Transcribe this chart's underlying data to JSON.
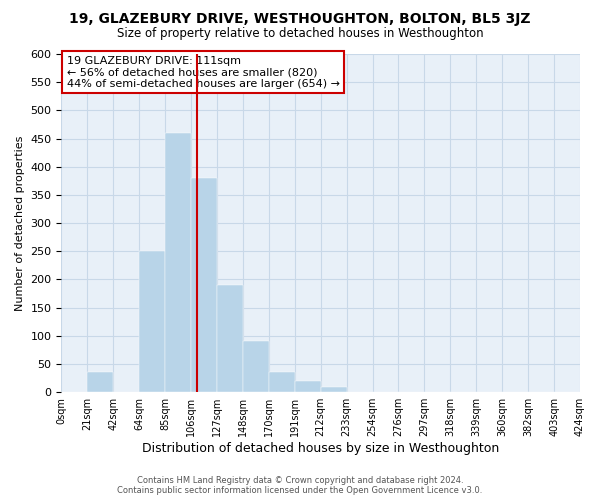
{
  "title": "19, GLAZEBURY DRIVE, WESTHOUGHTON, BOLTON, BL5 3JZ",
  "subtitle": "Size of property relative to detached houses in Westhoughton",
  "xlabel": "Distribution of detached houses by size in Westhoughton",
  "ylabel": "Number of detached properties",
  "bar_color": "#b8d4e8",
  "bar_edge_color": "#b8d4e8",
  "bin_labels": [
    "0sqm",
    "21sqm",
    "42sqm",
    "64sqm",
    "85sqm",
    "106sqm",
    "127sqm",
    "148sqm",
    "170sqm",
    "191sqm",
    "212sqm",
    "233sqm",
    "254sqm",
    "276sqm",
    "297sqm",
    "318sqm",
    "339sqm",
    "360sqm",
    "382sqm",
    "403sqm",
    "424sqm"
  ],
  "bar_heights": [
    0,
    35,
    0,
    250,
    460,
    380,
    190,
    90,
    35,
    20,
    10,
    0,
    0,
    0,
    0,
    0,
    0,
    0,
    0,
    0
  ],
  "n_bins": 20,
  "ylim": [
    0,
    600
  ],
  "yticks": [
    0,
    50,
    100,
    150,
    200,
    250,
    300,
    350,
    400,
    450,
    500,
    550,
    600
  ],
  "vline_bin": 5.24,
  "vline_color": "#cc0000",
  "annotation_title": "19 GLAZEBURY DRIVE: 111sqm",
  "annotation_line1": "← 56% of detached houses are smaller (820)",
  "annotation_line2": "44% of semi-detached houses are larger (654) →",
  "annotation_box_color": "#ffffff",
  "annotation_box_edge": "#cc0000",
  "background_color": "#ffffff",
  "plot_bg_color": "#e8f0f8",
  "grid_color": "#c8d8e8",
  "footer_line1": "Contains HM Land Registry data © Crown copyright and database right 2024.",
  "footer_line2": "Contains public sector information licensed under the Open Government Licence v3.0."
}
